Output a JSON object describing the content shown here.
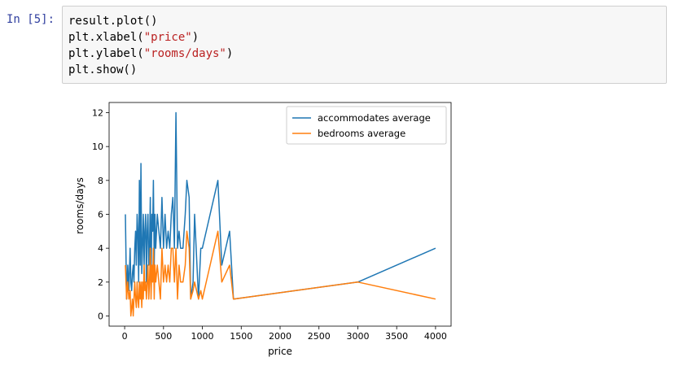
{
  "cell": {
    "prompt": "In [5]:",
    "lines": [
      {
        "pre": "result.plot()",
        "str": "",
        "post": ""
      },
      {
        "pre": "plt.xlabel(",
        "str": "\"price\"",
        "post": ")"
      },
      {
        "pre": "plt.ylabel(",
        "str": "\"rooms/days\"",
        "post": ")"
      },
      {
        "pre": "plt.show()",
        "str": "",
        "post": ""
      }
    ]
  },
  "chart_data": {
    "type": "line",
    "xlabel": "price",
    "ylabel": "rooms/days",
    "xlim": [
      -200,
      4200
    ],
    "ylim": [
      -0.6,
      12.6
    ],
    "xticks": [
      0,
      500,
      1000,
      1500,
      2000,
      2500,
      3000,
      3500,
      4000
    ],
    "yticks": [
      0,
      2,
      4,
      6,
      8,
      10,
      12
    ],
    "grid": false,
    "legend_position": "top-right",
    "series": [
      {
        "name": "accommodates average",
        "color": "#1f77b4",
        "x": [
          10,
          25,
          40,
          55,
          70,
          80,
          90,
          100,
          110,
          120,
          130,
          140,
          150,
          160,
          170,
          180,
          190,
          200,
          210,
          220,
          230,
          240,
          250,
          260,
          270,
          280,
          290,
          300,
          310,
          320,
          330,
          340,
          350,
          360,
          370,
          380,
          390,
          400,
          420,
          440,
          460,
          480,
          500,
          520,
          540,
          560,
          580,
          600,
          620,
          640,
          660,
          680,
          700,
          720,
          750,
          780,
          800,
          830,
          850,
          880,
          900,
          950,
          980,
          1000,
          1200,
          1250,
          1350,
          1400,
          3000,
          4000
        ],
        "y": [
          6,
          1,
          3,
          1.5,
          4,
          2,
          1.5,
          2.5,
          3,
          2,
          4,
          5,
          3,
          6,
          5,
          2,
          8,
          3,
          9,
          2.5,
          4,
          6,
          3,
          5,
          6,
          2,
          5,
          6,
          3,
          4,
          7,
          2,
          6,
          5,
          8,
          3,
          6,
          4,
          6,
          5,
          4,
          7,
          4,
          6,
          4,
          5,
          4,
          6,
          7,
          4,
          12,
          4,
          5,
          4,
          4,
          6,
          8,
          7,
          1,
          2,
          6,
          1,
          4,
          4,
          8,
          3,
          5,
          1,
          2,
          4
        ]
      },
      {
        "name": "bedrooms average",
        "color": "#ff7f0e",
        "x": [
          10,
          25,
          40,
          55,
          70,
          80,
          90,
          100,
          110,
          120,
          130,
          140,
          150,
          160,
          170,
          180,
          190,
          200,
          210,
          220,
          230,
          240,
          250,
          260,
          270,
          280,
          290,
          300,
          310,
          320,
          330,
          340,
          350,
          360,
          370,
          380,
          390,
          400,
          420,
          440,
          460,
          480,
          500,
          520,
          540,
          560,
          580,
          600,
          620,
          640,
          660,
          680,
          700,
          720,
          750,
          780,
          800,
          830,
          850,
          880,
          900,
          950,
          980,
          1000,
          1200,
          1250,
          1350,
          1400,
          3000,
          4000
        ],
        "y": [
          3,
          1,
          2,
          1,
          1.5,
          0,
          0.5,
          1,
          0,
          1,
          2,
          1,
          0.5,
          2,
          1,
          0.5,
          2,
          1,
          2,
          0.5,
          2,
          1,
          3,
          1.5,
          2,
          1,
          2,
          3,
          1,
          2,
          4,
          1,
          3,
          2,
          4,
          1,
          3,
          2,
          3,
          2,
          1,
          4,
          2,
          3,
          2,
          3,
          2,
          4,
          4,
          2,
          4,
          1,
          3,
          2,
          2,
          3,
          5,
          4,
          1,
          1.5,
          2,
          1,
          1.5,
          1,
          5,
          2,
          3,
          1,
          2,
          1
        ]
      }
    ]
  }
}
